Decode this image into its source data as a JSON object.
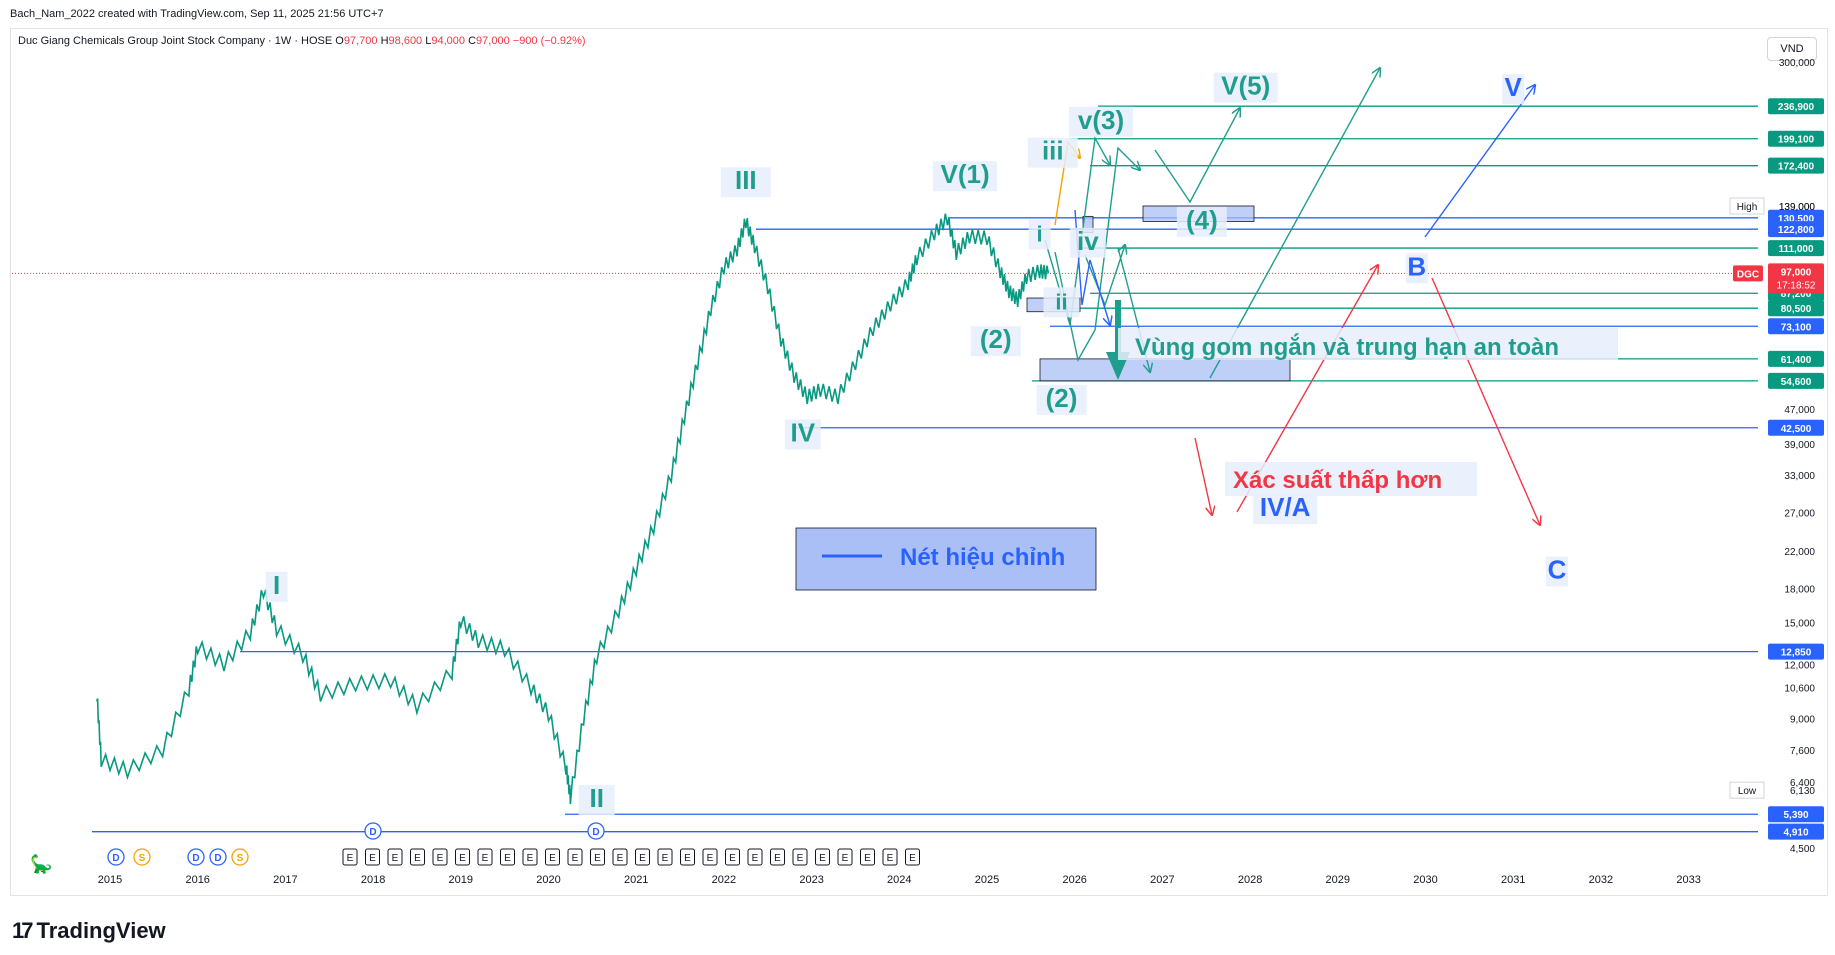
{
  "header": {
    "created_by": "Bach_Nam_2022 created with TradingView.com, Sep 11, 2025 21:56 UTC+7",
    "symbol": "Duc Giang Chemicals Group Joint Stock Company · 1W · HOSE",
    "ohlc": {
      "o_label": "O",
      "o": "97,700",
      "h_label": "H",
      "h": "98,600",
      "l_label": "L",
      "l": "94,000",
      "c_label": "C",
      "c": "97,000",
      "chg": "−900 (−0.92%)"
    },
    "currency": "VND"
  },
  "brand": "TradingView",
  "chart_data": {
    "type": "line",
    "title": "Duc Giang Chemicals Group Joint Stock Company · 1W · HOSE",
    "y_scale": "log",
    "ylim": [
      4300,
      320000
    ],
    "xlim": [
      2014.7,
      2034.0
    ],
    "x_ticks": [
      "2015",
      "2016",
      "2017",
      "2018",
      "2019",
      "2020",
      "2021",
      "2022",
      "2023",
      "2024",
      "2025",
      "2026",
      "2027",
      "2028",
      "2029",
      "2030",
      "2031",
      "2032",
      "2033"
    ],
    "y_ticks": [
      "300,000",
      "139,000",
      "47,000",
      "39,000",
      "33,000",
      "27,000",
      "22,000",
      "18,000",
      "15,000",
      "12,000",
      "10,600",
      "9,000",
      "7,600",
      "6,400",
      "4,500"
    ],
    "price_path": [
      [
        2014.85,
        10200
      ],
      [
        2014.9,
        7200
      ],
      [
        2015.2,
        6800
      ],
      [
        2015.6,
        7600
      ],
      [
        2015.9,
        10500
      ],
      [
        2016.0,
        13200
      ],
      [
        2016.3,
        12000
      ],
      [
        2016.6,
        14200
      ],
      [
        2016.75,
        17800
      ],
      [
        2016.9,
        14500
      ],
      [
        2017.2,
        12600
      ],
      [
        2017.4,
        10200
      ],
      [
        2017.8,
        10800
      ],
      [
        2018.2,
        11000
      ],
      [
        2018.5,
        9600
      ],
      [
        2018.9,
        11500
      ],
      [
        2019.0,
        15200
      ],
      [
        2019.2,
        13600
      ],
      [
        2019.5,
        13000
      ],
      [
        2019.8,
        10600
      ],
      [
        2020.0,
        9200
      ],
      [
        2020.2,
        6900
      ],
      [
        2020.25,
        5900
      ],
      [
        2020.4,
        9000
      ],
      [
        2020.55,
        12500
      ],
      [
        2020.8,
        16000
      ],
      [
        2021.0,
        20000
      ],
      [
        2021.2,
        25000
      ],
      [
        2021.4,
        33000
      ],
      [
        2021.55,
        45000
      ],
      [
        2021.7,
        60000
      ],
      [
        2021.85,
        80000
      ],
      [
        2022.0,
        100000
      ],
      [
        2022.15,
        110000
      ],
      [
        2022.25,
        128000
      ],
      [
        2022.35,
        112000
      ],
      [
        2022.5,
        90000
      ],
      [
        2022.65,
        68000
      ],
      [
        2022.8,
        56000
      ],
      [
        2022.95,
        50000
      ],
      [
        2023.1,
        52000
      ],
      [
        2023.3,
        50000
      ],
      [
        2023.5,
        60000
      ],
      [
        2023.7,
        72000
      ],
      [
        2023.9,
        82000
      ],
      [
        2024.1,
        92000
      ],
      [
        2024.2,
        105000
      ],
      [
        2024.4,
        120000
      ],
      [
        2024.55,
        130000
      ],
      [
        2024.65,
        108000
      ],
      [
        2024.8,
        118000
      ],
      [
        2025.0,
        117000
      ],
      [
        2025.15,
        98000
      ],
      [
        2025.25,
        88000
      ],
      [
        2025.35,
        84000
      ],
      [
        2025.45,
        95000
      ],
      [
        2025.6,
        98000
      ],
      [
        2025.7,
        97000
      ]
    ],
    "price_labels": [
      {
        "text": "236,900",
        "value": 236900,
        "color": "#089981"
      },
      {
        "text": "199,100",
        "value": 199100,
        "color": "#089981"
      },
      {
        "text": "172,400",
        "value": 172400,
        "color": "#089981"
      },
      {
        "text": "130,500",
        "value": 130500,
        "color": "#2962ff"
      },
      {
        "text": "122,800",
        "value": 122800,
        "color": "#2962ff"
      },
      {
        "text": "111,000",
        "value": 111000,
        "color": "#089981"
      },
      {
        "text": "87,200",
        "value": 87200,
        "color": "#089981"
      },
      {
        "text": "80,500",
        "value": 80500,
        "color": "#089981"
      },
      {
        "text": "73,100",
        "value": 73100,
        "color": "#2962ff"
      },
      {
        "text": "61,400",
        "value": 61400,
        "color": "#089981"
      },
      {
        "text": "54,600",
        "value": 54600,
        "color": "#089981"
      },
      {
        "text": "42,500",
        "value": 42500,
        "color": "#2962ff"
      },
      {
        "text": "12,850",
        "value": 12850,
        "color": "#2962ff"
      },
      {
        "text": "5,390",
        "value": 5390,
        "color": "#2962ff"
      },
      {
        "text": "4,910",
        "value": 4910,
        "color": "#2962ff"
      }
    ],
    "current": {
      "symbol": "DGC",
      "price": "97,000",
      "countdown": "17:18:52",
      "value": 97000
    },
    "high": {
      "label": "High",
      "value": 139000,
      "text": "139,000"
    },
    "low": {
      "label": "Low",
      "value": 6130,
      "text": "6,130"
    },
    "wave_labels": [
      {
        "text": "I",
        "x": 2016.9,
        "v": 17500,
        "color": "#1f9e8e"
      },
      {
        "text": "II",
        "x": 2020.55,
        "v": 5600,
        "color": "#1f9e8e"
      },
      {
        "text": "III",
        "x": 2022.25,
        "v": 152000,
        "color": "#1f9e8e"
      },
      {
        "text": "IV",
        "x": 2022.9,
        "v": 39500,
        "color": "#1f9e8e"
      },
      {
        "text": "V(1)",
        "x": 2024.75,
        "v": 157000,
        "color": "#1f9e8e"
      },
      {
        "text": "(2)",
        "x": 2025.1,
        "v": 65000,
        "color": "#1f9e8e"
      },
      {
        "text": "(2)",
        "x": 2025.85,
        "v": 47500,
        "color": "#1f9e8e"
      },
      {
        "text": "i",
        "x": 2025.6,
        "v": 115000,
        "color": "#1f9e8e"
      },
      {
        "text": "ii",
        "x": 2025.85,
        "v": 80000,
        "color": "#1f9e8e"
      },
      {
        "text": "iii",
        "x": 2025.75,
        "v": 178000,
        "color": "#1f9e8e"
      },
      {
        "text": "iv",
        "x": 2026.15,
        "v": 110000,
        "color": "#1f9e8e"
      },
      {
        "text": "v(3)",
        "x": 2026.3,
        "v": 210000,
        "color": "#1f9e8e"
      },
      {
        "text": "(4)",
        "x": 2027.45,
        "v": 123000,
        "color": "#1f9e8e"
      },
      {
        "text": "V(5)",
        "x": 2027.95,
        "v": 252000,
        "color": "#1f9e8e"
      },
      {
        "text": "V",
        "x": 2031.0,
        "v": 250000,
        "color": "#2962ff"
      },
      {
        "text": "B",
        "x": 2029.9,
        "v": 96000,
        "color": "#2962ff"
      },
      {
        "text": "IV/A",
        "x": 2028.4,
        "v": 26500,
        "color": "#2962ff"
      },
      {
        "text": "C",
        "x": 2031.5,
        "v": 19000,
        "color": "#2962ff"
      }
    ],
    "annotations": [
      {
        "text": "Vùng gom ngắn và trung hạn an toàn",
        "color": "#1f9e8e"
      },
      {
        "text": "Xác suất thấp hơn",
        "color": "#f23645"
      },
      {
        "text": "Nét hiệu chỉnh",
        "color": "#2962ff"
      }
    ],
    "event_markers": {
      "earnings": "E",
      "dividend": "D",
      "split": "S"
    }
  }
}
